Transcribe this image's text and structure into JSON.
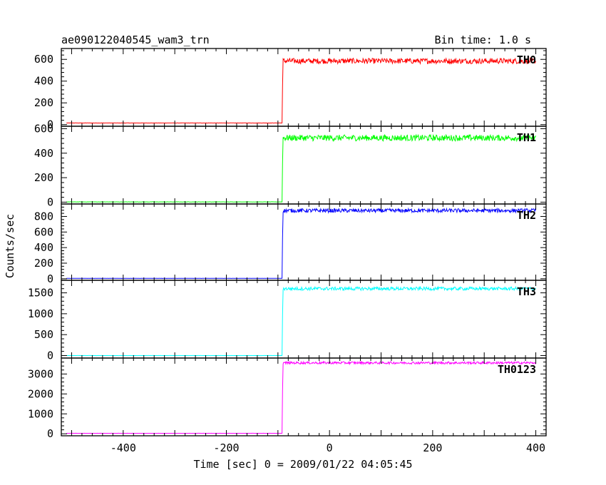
{
  "chart_data": {
    "type": "line",
    "title_left": "ae090122040545_wam3_trn",
    "title_right": "Bin time: 1.0 s",
    "xlabel": "Time [sec] 0 = 2009/01/22 04:05:45",
    "ylabel": "Counts/sec",
    "xlim": [
      -520,
      420
    ],
    "x_ticks": [
      -400,
      -200,
      0,
      200,
      400
    ],
    "bin_time_s": 1.0,
    "trigger_time_s": -91,
    "grid": false,
    "panels": [
      {
        "name": "TH0",
        "color": "#ff0000",
        "ylim": [
          -15,
          700
        ],
        "y_ticks": [
          0,
          200,
          400,
          600
        ],
        "pre_level": 15,
        "post_level": 585,
        "noise": 25
      },
      {
        "name": "TH1",
        "color": "#00ff00",
        "ylim": [
          -15,
          620
        ],
        "y_ticks": [
          0,
          200,
          400,
          600
        ],
        "pre_level": 2,
        "post_level": 525,
        "noise": 25
      },
      {
        "name": "TH2",
        "color": "#0000ff",
        "ylim": [
          -20,
          960
        ],
        "y_ticks": [
          0,
          200,
          400,
          600,
          800
        ],
        "pre_level": 5,
        "post_level": 875,
        "noise": 25
      },
      {
        "name": "TH3",
        "color": "#00ffff",
        "ylim": [
          -60,
          1800
        ],
        "y_ticks": [
          0,
          500,
          1000,
          1500
        ],
        "pre_level": 0,
        "post_level": 1600,
        "noise": 40
      },
      {
        "name": "TH0123",
        "color": "#ff00ff",
        "ylim": [
          -100,
          3800
        ],
        "y_ticks": [
          0,
          1000,
          2000,
          3000
        ],
        "pre_level": 25,
        "post_level": 3560,
        "noise": 60
      }
    ]
  }
}
